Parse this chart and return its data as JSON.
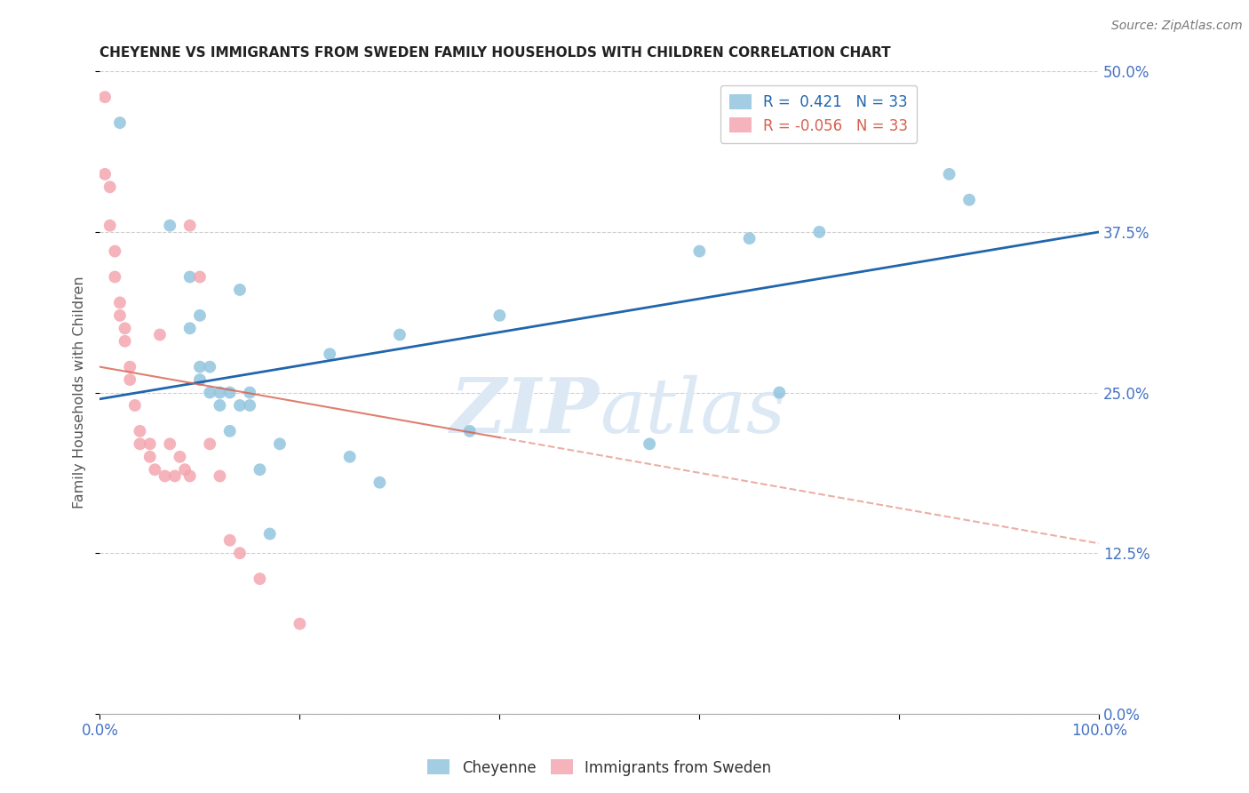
{
  "title": "CHEYENNE VS IMMIGRANTS FROM SWEDEN FAMILY HOUSEHOLDS WITH CHILDREN CORRELATION CHART",
  "source": "Source: ZipAtlas.com",
  "ylabel": "Family Households with Children",
  "xlim": [
    0.0,
    1.0
  ],
  "ylim": [
    0.0,
    0.5
  ],
  "yticks": [
    0.0,
    0.125,
    0.25,
    0.375,
    0.5
  ],
  "ytick_labels": [
    "0.0%",
    "12.5%",
    "25.0%",
    "37.5%",
    "50.0%"
  ],
  "xticks": [
    0.0,
    0.2,
    0.4,
    0.6,
    0.8,
    1.0
  ],
  "xtick_labels": [
    "0.0%",
    "",
    "",
    "",
    "",
    "100.0%"
  ],
  "cheyenne_color": "#92c5de",
  "immigrants_color": "#f4a6b0",
  "line1_color": "#2166ac",
  "line2_color": "#d6604d",
  "background_color": "#ffffff",
  "grid_color": "#bbbbbb",
  "tick_color": "#4472c4",
  "cheyenne_x": [
    0.02,
    0.07,
    0.09,
    0.09,
    0.1,
    0.1,
    0.1,
    0.11,
    0.11,
    0.12,
    0.12,
    0.13,
    0.13,
    0.14,
    0.14,
    0.15,
    0.15,
    0.16,
    0.17,
    0.18,
    0.23,
    0.25,
    0.28,
    0.3,
    0.37,
    0.4,
    0.55,
    0.6,
    0.65,
    0.68,
    0.72,
    0.85,
    0.87
  ],
  "cheyenne_y": [
    0.46,
    0.38,
    0.34,
    0.3,
    0.31,
    0.27,
    0.26,
    0.27,
    0.25,
    0.24,
    0.25,
    0.25,
    0.22,
    0.24,
    0.33,
    0.25,
    0.24,
    0.19,
    0.14,
    0.21,
    0.28,
    0.2,
    0.18,
    0.295,
    0.22,
    0.31,
    0.21,
    0.36,
    0.37,
    0.25,
    0.375,
    0.42,
    0.4
  ],
  "immigrants_x": [
    0.005,
    0.005,
    0.01,
    0.01,
    0.015,
    0.015,
    0.02,
    0.02,
    0.025,
    0.025,
    0.03,
    0.03,
    0.035,
    0.04,
    0.04,
    0.05,
    0.05,
    0.055,
    0.06,
    0.065,
    0.07,
    0.075,
    0.08,
    0.085,
    0.09,
    0.09,
    0.1,
    0.11,
    0.12,
    0.13,
    0.14,
    0.16,
    0.2
  ],
  "immigrants_y": [
    0.48,
    0.42,
    0.41,
    0.38,
    0.36,
    0.34,
    0.32,
    0.31,
    0.3,
    0.29,
    0.27,
    0.26,
    0.24,
    0.22,
    0.21,
    0.21,
    0.2,
    0.19,
    0.295,
    0.185,
    0.21,
    0.185,
    0.2,
    0.19,
    0.185,
    0.38,
    0.34,
    0.21,
    0.185,
    0.135,
    0.125,
    0.105,
    0.07
  ],
  "line1_x0": 0.0,
  "line1_x1": 1.0,
  "line1_y0": 0.245,
  "line1_y1": 0.375,
  "line2_x0": 0.0,
  "line2_x1": 0.4,
  "line2_y0": 0.27,
  "line2_y1": 0.215,
  "watermark_zip": "ZIP",
  "watermark_atlas": "atlas",
  "marker_size": 100
}
